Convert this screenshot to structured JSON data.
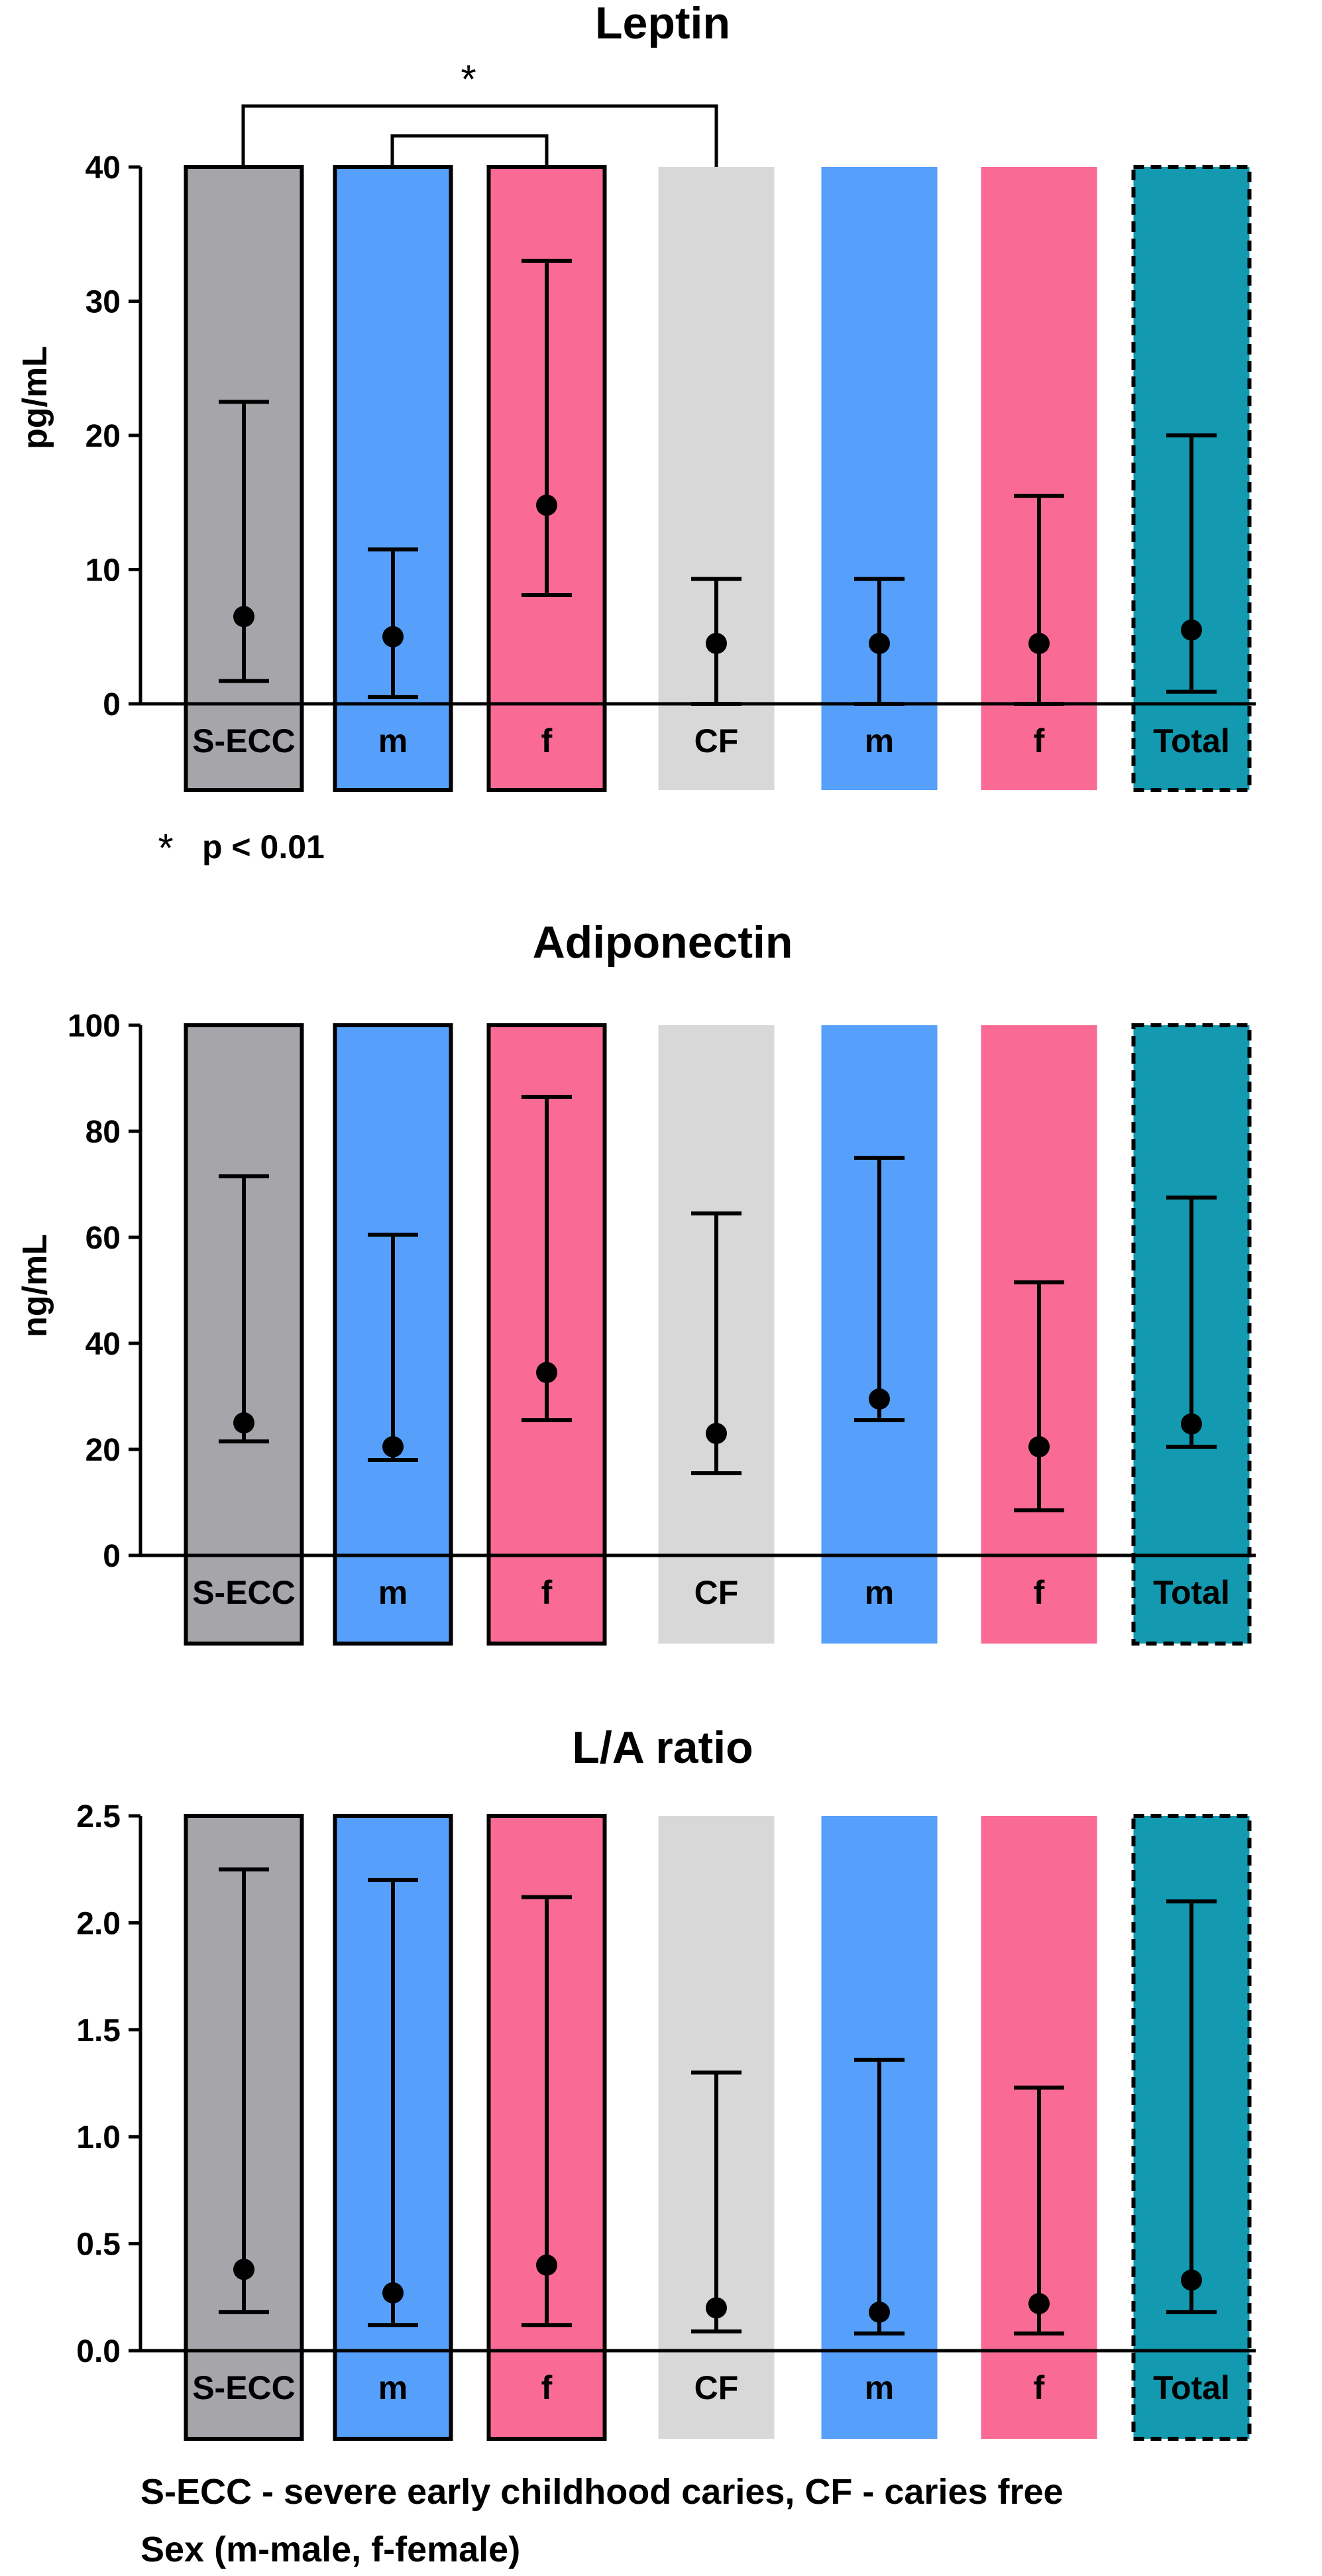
{
  "colors": {
    "secc": "#a6a5aa",
    "male": "#56a0fb",
    "female": "#f96a94",
    "cf": "#d8d8d8",
    "total": "#1399b0",
    "ink": "#000000"
  },
  "categories": [
    "S-ECC",
    "m",
    "f",
    "CF",
    "m",
    "f",
    "Total"
  ],
  "category_styles": [
    "secc",
    "male",
    "female",
    "cf",
    "male",
    "female",
    "total"
  ],
  "category_outlines": [
    "solid",
    "solid",
    "solid",
    "none",
    "none",
    "none",
    "dashed"
  ],
  "chart_data": [
    {
      "type": "bar",
      "title": "Leptin",
      "ylabel": "pg/mL",
      "xlabel": "",
      "ylim": [
        0,
        40
      ],
      "yticks": [
        0,
        10,
        20,
        30,
        40
      ],
      "ytick_labels": [
        "0",
        "10",
        "20",
        "30",
        "40"
      ],
      "categories": [
        "S-ECC",
        "m",
        "f",
        "CF",
        "m",
        "f",
        "Total"
      ],
      "series": [
        {
          "name": "median",
          "values": [
            6.5,
            5.0,
            14.8,
            4.5,
            4.5,
            4.5,
            5.5
          ]
        },
        {
          "name": "lower",
          "values": [
            1.7,
            0.5,
            8.1,
            0.0,
            0.0,
            0.0,
            0.9
          ]
        },
        {
          "name": "upper",
          "values": [
            22.5,
            11.5,
            33.0,
            9.3,
            9.3,
            15.5,
            20.0
          ]
        }
      ],
      "annotations": {
        "star": "*",
        "note_star": "*",
        "note_text": "p  < 0.01"
      }
    },
    {
      "type": "bar",
      "title": "Adiponectin",
      "ylabel": "ng/mL",
      "xlabel": "",
      "ylim": [
        0,
        100
      ],
      "yticks": [
        0,
        20,
        40,
        60,
        80,
        100
      ],
      "ytick_labels": [
        "0",
        "20",
        "40",
        "60",
        "80",
        "100"
      ],
      "categories": [
        "S-ECC",
        "m",
        "f",
        "CF",
        "m",
        "f",
        "Total"
      ],
      "series": [
        {
          "name": "median",
          "values": [
            25,
            20.5,
            34.5,
            23,
            29.5,
            20.5,
            24.8
          ]
        },
        {
          "name": "lower",
          "values": [
            21.5,
            18,
            25.5,
            15.5,
            25.5,
            8.5,
            20.5
          ]
        },
        {
          "name": "upper",
          "values": [
            71.5,
            60.5,
            86.5,
            64.5,
            75,
            51.5,
            67.5
          ]
        }
      ]
    },
    {
      "type": "bar",
      "title": "L/A ratio",
      "ylabel": "",
      "xlabel": "",
      "ylim": [
        0,
        2.5
      ],
      "yticks": [
        0,
        0.5,
        1.0,
        1.5,
        2.0,
        2.5
      ],
      "ytick_labels": [
        "0.0",
        "0.5",
        "1.0",
        "1.5",
        "2.0",
        "2.5"
      ],
      "categories": [
        "S-ECC",
        "m",
        "f",
        "CF",
        "m",
        "f",
        "Total"
      ],
      "series": [
        {
          "name": "median",
          "values": [
            0.38,
            0.27,
            0.4,
            0.2,
            0.18,
            0.22,
            0.33
          ]
        },
        {
          "name": "lower",
          "values": [
            0.18,
            0.12,
            0.12,
            0.09,
            0.08,
            0.08,
            0.18
          ]
        },
        {
          "name": "upper",
          "values": [
            2.25,
            2.2,
            2.12,
            1.3,
            1.36,
            1.23,
            2.1
          ]
        }
      ]
    }
  ],
  "footnote": {
    "line1": "S-ECC - severe early childhood caries, CF - caries free",
    "line2": "Sex  (m-male, f-female)"
  }
}
